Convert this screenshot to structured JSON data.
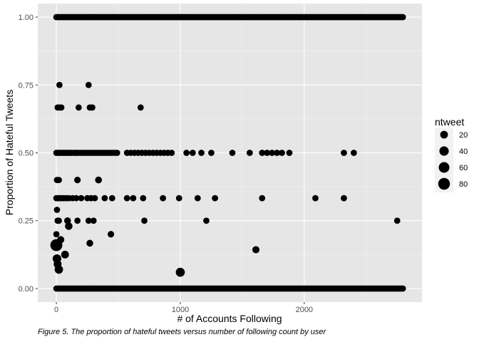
{
  "caption": "Figure 5. The proportion of hateful tweets versus number of following count by user",
  "chart_data": {
    "type": "scatter",
    "xlabel": "# of Accounts Following",
    "ylabel": "Proportion of Hateful Tweets",
    "xlim": [
      -150,
      2950
    ],
    "ylim": [
      -0.05,
      1.05
    ],
    "x_ticks": [
      0,
      1000,
      2000
    ],
    "y_ticks": [
      0.0,
      0.25,
      0.5,
      0.75,
      1.0
    ],
    "y_tick_labels": [
      "0.00",
      "0.25",
      "0.50",
      "0.75",
      "1.00"
    ],
    "grid": true,
    "size_legend": {
      "title": "ntweet",
      "position": "right",
      "entries": [
        20,
        40,
        60,
        80
      ]
    },
    "colors": {
      "panel": "#e6e6e6",
      "grid": "#ffffff",
      "point": "#000000"
    },
    "points": [
      [
        0,
        0.16,
        85
      ],
      [
        5,
        0.11,
        30
      ],
      [
        10,
        0.09,
        22
      ],
      [
        20,
        0.07,
        28
      ],
      [
        35,
        0.18,
        15
      ],
      [
        70,
        0.125,
        20
      ],
      [
        100,
        0.23,
        18
      ],
      [
        90,
        0.25,
        12
      ],
      [
        1000,
        0.06,
        35
      ],
      [
        1610,
        0.143,
        15
      ],
      [
        270,
        0.167,
        12
      ],
      [
        440,
        0.2,
        10
      ],
      [
        0,
        0.2,
        8
      ],
      [
        5,
        0.29,
        8
      ],
      [
        10,
        0.25,
        8
      ],
      [
        20,
        0.25,
        8
      ],
      [
        170,
        0.25,
        8
      ],
      [
        260,
        0.25,
        8
      ],
      [
        300,
        0.25,
        8
      ],
      [
        710,
        0.25,
        8
      ],
      [
        1210,
        0.25,
        8
      ],
      [
        2750,
        0.25,
        8
      ],
      [
        0,
        0.333,
        8
      ],
      [
        15,
        0.333,
        8
      ],
      [
        30,
        0.333,
        8
      ],
      [
        45,
        0.333,
        8
      ],
      [
        60,
        0.333,
        8
      ],
      [
        80,
        0.333,
        8
      ],
      [
        100,
        0.333,
        8
      ],
      [
        130,
        0.333,
        8
      ],
      [
        160,
        0.333,
        8
      ],
      [
        200,
        0.333,
        8
      ],
      [
        250,
        0.333,
        8
      ],
      [
        280,
        0.333,
        8
      ],
      [
        310,
        0.333,
        8
      ],
      [
        390,
        0.333,
        8
      ],
      [
        450,
        0.333,
        8
      ],
      [
        570,
        0.333,
        8
      ],
      [
        620,
        0.333,
        8
      ],
      [
        700,
        0.333,
        8
      ],
      [
        860,
        0.333,
        8
      ],
      [
        990,
        0.333,
        8
      ],
      [
        1140,
        0.333,
        8
      ],
      [
        1280,
        0.333,
        8
      ],
      [
        1660,
        0.333,
        8
      ],
      [
        2090,
        0.333,
        8
      ],
      [
        2320,
        0.333,
        8
      ],
      [
        340,
        0.4,
        12
      ],
      [
        5,
        0.4,
        8
      ],
      [
        20,
        0.4,
        8
      ],
      [
        170,
        0.4,
        10
      ],
      [
        0,
        0.5,
        8
      ],
      [
        15,
        0.5,
        8
      ],
      [
        30,
        0.5,
        8
      ],
      [
        45,
        0.5,
        8
      ],
      [
        60,
        0.5,
        8
      ],
      [
        75,
        0.5,
        8
      ],
      [
        90,
        0.5,
        8
      ],
      [
        105,
        0.5,
        8
      ],
      [
        120,
        0.5,
        8
      ],
      [
        140,
        0.5,
        8
      ],
      [
        155,
        0.5,
        8
      ],
      [
        170,
        0.5,
        8
      ],
      [
        190,
        0.5,
        8
      ],
      [
        210,
        0.5,
        8
      ],
      [
        230,
        0.5,
        8
      ],
      [
        250,
        0.5,
        8
      ],
      [
        270,
        0.5,
        8
      ],
      [
        290,
        0.5,
        8
      ],
      [
        310,
        0.5,
        8
      ],
      [
        330,
        0.5,
        8
      ],
      [
        350,
        0.5,
        8
      ],
      [
        370,
        0.5,
        8
      ],
      [
        390,
        0.5,
        8
      ],
      [
        410,
        0.5,
        8
      ],
      [
        430,
        0.5,
        8
      ],
      [
        450,
        0.5,
        8
      ],
      [
        470,
        0.5,
        8
      ],
      [
        490,
        0.5,
        8
      ],
      [
        570,
        0.5,
        8
      ],
      [
        600,
        0.5,
        8
      ],
      [
        630,
        0.5,
        8
      ],
      [
        660,
        0.5,
        8
      ],
      [
        690,
        0.5,
        8
      ],
      [
        720,
        0.5,
        8
      ],
      [
        750,
        0.5,
        8
      ],
      [
        780,
        0.5,
        8
      ],
      [
        810,
        0.5,
        8
      ],
      [
        840,
        0.5,
        8
      ],
      [
        870,
        0.5,
        8
      ],
      [
        900,
        0.5,
        8
      ],
      [
        930,
        0.5,
        8
      ],
      [
        1050,
        0.5,
        8
      ],
      [
        1100,
        0.5,
        8
      ],
      [
        1170,
        0.5,
        8
      ],
      [
        1250,
        0.5,
        8
      ],
      [
        1420,
        0.5,
        8
      ],
      [
        1560,
        0.5,
        8
      ],
      [
        1660,
        0.5,
        8
      ],
      [
        1700,
        0.5,
        8
      ],
      [
        1740,
        0.5,
        8
      ],
      [
        1780,
        0.5,
        8
      ],
      [
        1820,
        0.5,
        8
      ],
      [
        1880,
        0.5,
        8
      ],
      [
        2320,
        0.5,
        8
      ],
      [
        2400,
        0.5,
        8
      ],
      [
        25,
        0.667,
        8
      ],
      [
        10,
        0.667,
        8
      ],
      [
        40,
        0.667,
        8
      ],
      [
        180,
        0.667,
        8
      ],
      [
        270,
        0.667,
        8
      ],
      [
        290,
        0.667,
        8
      ],
      [
        680,
        0.667,
        8
      ],
      [
        25,
        0.75,
        8
      ],
      [
        260,
        0.75,
        8
      ]
    ],
    "dense_rows": [
      {
        "y": 1.0,
        "x_from": 0,
        "x_to": 2800,
        "step": 12,
        "size": 8
      },
      {
        "y": 0.0,
        "x_from": 0,
        "x_to": 2800,
        "step": 12,
        "size": 8
      }
    ]
  }
}
